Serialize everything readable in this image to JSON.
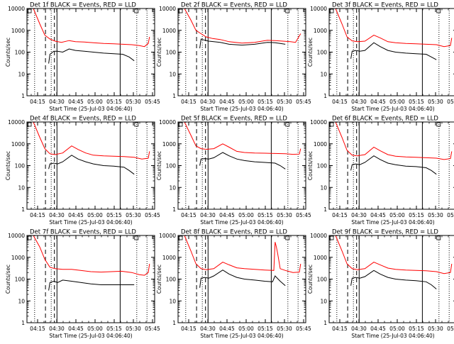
{
  "colors": {
    "events": "#000000",
    "lld": "#ff0000",
    "markers": "#000000"
  },
  "shared": {
    "xlabel": "Start Time (25-Jul-03 04:06:40)",
    "ylabel": "Counts/sec",
    "x_ticks": [
      "04:15",
      "04:30",
      "04:45",
      "05:00",
      "05:15",
      "05:30",
      "05:45"
    ],
    "x_tick_minutes": [
      8.33,
      23.33,
      38.33,
      53.33,
      68.33,
      83.33,
      98.33
    ],
    "y_ticks": [
      "1",
      "10",
      "100",
      "1000",
      "10000"
    ],
    "xlim_minutes": [
      0,
      100
    ],
    "ylim_log": [
      1,
      10000
    ],
    "markers": {
      "dotted_minutes": [
        6,
        19,
        86,
        94
      ],
      "dashed_minutes": [
        14.5,
        21.5
      ],
      "solid_minutes": [
        23.5,
        73
      ]
    }
  },
  "chart_data": [
    {
      "type": "line",
      "title": "Det 1f BLACK = Events, RED = LLD",
      "xlabel": "Start Time (25-Jul-03 04:06:40)",
      "ylabel": "Counts/sec",
      "ylim": [
        1,
        10000
      ],
      "series": [
        {
          "name": "LLD",
          "color": "#ff0000",
          "x": [
            0,
            5,
            10,
            14,
            18,
            22,
            27,
            33,
            38,
            45,
            52,
            60,
            68,
            75,
            82,
            88,
            92,
            95,
            96
          ],
          "y": [
            12000,
            10000,
            2000,
            600,
            400,
            320,
            280,
            340,
            300,
            290,
            270,
            250,
            240,
            230,
            220,
            200,
            180,
            250,
            500
          ]
        },
        {
          "name": "Events",
          "color": "#000000",
          "x": [
            17,
            18,
            21,
            24,
            28,
            33,
            38,
            45,
            52,
            60,
            68,
            75,
            80,
            84
          ],
          "y": [
            30,
            80,
            110,
            110,
            100,
            140,
            120,
            110,
            100,
            90,
            85,
            80,
            60,
            40
          ]
        }
      ]
    },
    {
      "type": "line",
      "title": "Det 2f BLACK = Events, RED = LLD",
      "xlabel": "Start Time (25-Jul-03 04:06:40)",
      "ylabel": "Counts/sec",
      "ylim": [
        1,
        10000
      ],
      "series": [
        {
          "name": "LLD",
          "color": "#ff0000",
          "x": [
            0,
            5,
            10,
            14,
            18,
            22,
            27,
            33,
            40,
            50,
            60,
            70,
            76,
            82,
            88,
            92,
            96
          ],
          "y": [
            12000,
            10000,
            3000,
            1000,
            700,
            500,
            420,
            380,
            300,
            260,
            280,
            350,
            340,
            320,
            300,
            280,
            700
          ]
        },
        {
          "name": "Events",
          "color": "#000000",
          "x": [
            17,
            18,
            21,
            24,
            28,
            33,
            40,
            50,
            60,
            70,
            76,
            80,
            84
          ],
          "y": [
            150,
            400,
            350,
            320,
            300,
            280,
            230,
            210,
            230,
            280,
            270,
            250,
            230
          ]
        }
      ]
    },
    {
      "type": "line",
      "title": "Det 3f BLACK = Events, RED = LLD",
      "xlabel": "Start Time (25-Jul-03 04:06:40)",
      "ylabel": "Counts/sec",
      "ylim": [
        1,
        10000
      ],
      "series": [
        {
          "name": "LLD",
          "color": "#ff0000",
          "x": [
            0,
            5,
            10,
            14,
            18,
            22,
            28,
            35,
            40,
            46,
            52,
            60,
            68,
            76,
            84,
            90,
            95,
            96
          ],
          "y": [
            12000,
            10000,
            2000,
            500,
            330,
            300,
            320,
            600,
            450,
            300,
            270,
            250,
            240,
            230,
            220,
            180,
            200,
            450
          ]
        },
        {
          "name": "Events",
          "color": "#000000",
          "x": [
            17,
            18,
            21,
            24,
            28,
            35,
            40,
            46,
            52,
            60,
            68,
            76,
            80,
            84
          ],
          "y": [
            50,
            110,
            120,
            110,
            120,
            270,
            180,
            120,
            100,
            90,
            85,
            80,
            60,
            45
          ]
        }
      ]
    },
    {
      "type": "line",
      "title": "Det 4f BLACK = Events, RED = LLD",
      "xlabel": "Start Time (25-Jul-03 04:06:40)",
      "ylabel": "Counts/sec",
      "ylim": [
        1,
        10000
      ],
      "series": [
        {
          "name": "LLD",
          "color": "#ff0000",
          "x": [
            0,
            5,
            10,
            14,
            18,
            22,
            28,
            35,
            40,
            46,
            52,
            60,
            68,
            76,
            84,
            90,
            95,
            96
          ],
          "y": [
            12000,
            10000,
            2000,
            600,
            350,
            320,
            380,
            800,
            550,
            380,
            300,
            280,
            270,
            260,
            240,
            200,
            220,
            450
          ]
        },
        {
          "name": "Events",
          "color": "#000000",
          "x": [
            17,
            18,
            21,
            24,
            28,
            35,
            40,
            46,
            52,
            60,
            68,
            76,
            80,
            84
          ],
          "y": [
            70,
            120,
            130,
            120,
            150,
            300,
            200,
            150,
            120,
            100,
            95,
            85,
            60,
            40
          ]
        }
      ]
    },
    {
      "type": "line",
      "title": "Det 5f BLACK = Events, RED = LLD",
      "xlabel": "Start Time (25-Jul-03 04:06:40)",
      "ylabel": "Counts/sec",
      "ylim": [
        1,
        10000
      ],
      "series": [
        {
          "name": "LLD",
          "color": "#ff0000",
          "x": [
            0,
            5,
            10,
            14,
            18,
            22,
            28,
            35,
            40,
            46,
            52,
            60,
            68,
            76,
            84,
            90,
            95,
            96
          ],
          "y": [
            12000,
            10000,
            2500,
            800,
            600,
            560,
            600,
            1000,
            700,
            450,
            400,
            380,
            370,
            360,
            350,
            330,
            340,
            600
          ]
        },
        {
          "name": "Events",
          "color": "#000000",
          "x": [
            17,
            18,
            21,
            24,
            28,
            35,
            40,
            46,
            52,
            60,
            68,
            76,
            80,
            84
          ],
          "y": [
            100,
            200,
            210,
            200,
            230,
            400,
            280,
            200,
            170,
            150,
            140,
            130,
            100,
            70
          ]
        }
      ]
    },
    {
      "type": "line",
      "title": "Det 6f BLACK = Events, RED = LLD",
      "xlabel": "Start Time (25-Jul-03 04:06:40)",
      "ylabel": "Counts/sec",
      "ylim": [
        1,
        10000
      ],
      "series": [
        {
          "name": "LLD",
          "color": "#ff0000",
          "x": [
            0,
            5,
            10,
            14,
            18,
            22,
            28,
            35,
            40,
            46,
            52,
            60,
            68,
            76,
            84,
            90,
            95,
            96
          ],
          "y": [
            12000,
            10000,
            2000,
            500,
            300,
            280,
            320,
            700,
            480,
            320,
            270,
            250,
            240,
            230,
            220,
            190,
            210,
            450
          ]
        },
        {
          "name": "Events",
          "color": "#000000",
          "x": [
            17,
            18,
            21,
            24,
            28,
            35,
            40,
            46,
            52,
            60,
            68,
            76,
            80,
            84
          ],
          "y": [
            60,
            110,
            120,
            110,
            140,
            280,
            190,
            130,
            110,
            95,
            90,
            80,
            60,
            40
          ]
        }
      ]
    },
    {
      "type": "line",
      "title": "Det 7f BLACK = Events, RED = LLD",
      "xlabel": "Start Time (25-Jul-03 04:06:40)",
      "ylabel": "Counts/sec",
      "ylim": [
        1,
        10000
      ],
      "series": [
        {
          "name": "LLD",
          "color": "#ff0000",
          "x": [
            0,
            5,
            10,
            14,
            18,
            22,
            28,
            35,
            42,
            50,
            58,
            66,
            74,
            82,
            88,
            92,
            95,
            96
          ],
          "y": [
            12000,
            10000,
            3000,
            800,
            350,
            300,
            280,
            280,
            250,
            220,
            210,
            220,
            230,
            200,
            160,
            150,
            200,
            500
          ]
        },
        {
          "name": "Events",
          "color": "#000000",
          "x": [
            17,
            18,
            21,
            24,
            28,
            35,
            42,
            50,
            58,
            66,
            74,
            80,
            84
          ],
          "y": [
            30,
            70,
            80,
            70,
            90,
            80,
            70,
            60,
            55,
            55,
            55,
            55,
            55
          ]
        }
      ]
    },
    {
      "type": "line",
      "title": "Det 8f BLACK = Events, RED = LLD",
      "xlabel": "Start Time (25-Jul-03 04:06:40)",
      "ylabel": "Counts/sec",
      "ylim": [
        1,
        10000
      ],
      "series": [
        {
          "name": "LLD",
          "color": "#ff0000",
          "x": [
            0,
            5,
            10,
            14,
            18,
            22,
            28,
            35,
            40,
            46,
            52,
            60,
            68,
            75,
            76,
            77,
            78,
            80,
            84,
            90,
            95,
            96
          ],
          "y": [
            12000,
            10000,
            2000,
            500,
            300,
            270,
            300,
            600,
            450,
            330,
            300,
            280,
            260,
            250,
            5000,
            3000,
            1500,
            300,
            250,
            200,
            210,
            500
          ]
        },
        {
          "name": "Events",
          "color": "#000000",
          "x": [
            17,
            18,
            21,
            24,
            28,
            35,
            40,
            46,
            52,
            60,
            68,
            74,
            76,
            80,
            84
          ],
          "y": [
            40,
            110,
            120,
            110,
            140,
            260,
            170,
            120,
            100,
            90,
            80,
            75,
            140,
            80,
            50
          ]
        }
      ]
    },
    {
      "type": "line",
      "title": "Det 9f BLACK = Events, RED = LLD",
      "xlabel": "Start Time (25-Jul-03 04:06:40)",
      "ylabel": "Counts/sec",
      "ylim": [
        1,
        10000
      ],
      "series": [
        {
          "name": "LLD",
          "color": "#ff0000",
          "x": [
            0,
            5,
            10,
            14,
            18,
            22,
            28,
            35,
            40,
            46,
            52,
            60,
            68,
            76,
            84,
            90,
            95,
            96
          ],
          "y": [
            12000,
            10000,
            2000,
            500,
            300,
            270,
            300,
            600,
            450,
            320,
            280,
            260,
            250,
            240,
            220,
            180,
            200,
            500
          ]
        },
        {
          "name": "Events",
          "color": "#000000",
          "x": [
            17,
            18,
            21,
            24,
            28,
            35,
            40,
            46,
            52,
            60,
            68,
            76,
            80,
            84
          ],
          "y": [
            50,
            110,
            120,
            110,
            130,
            250,
            170,
            120,
            100,
            90,
            85,
            75,
            55,
            35
          ]
        }
      ]
    }
  ]
}
